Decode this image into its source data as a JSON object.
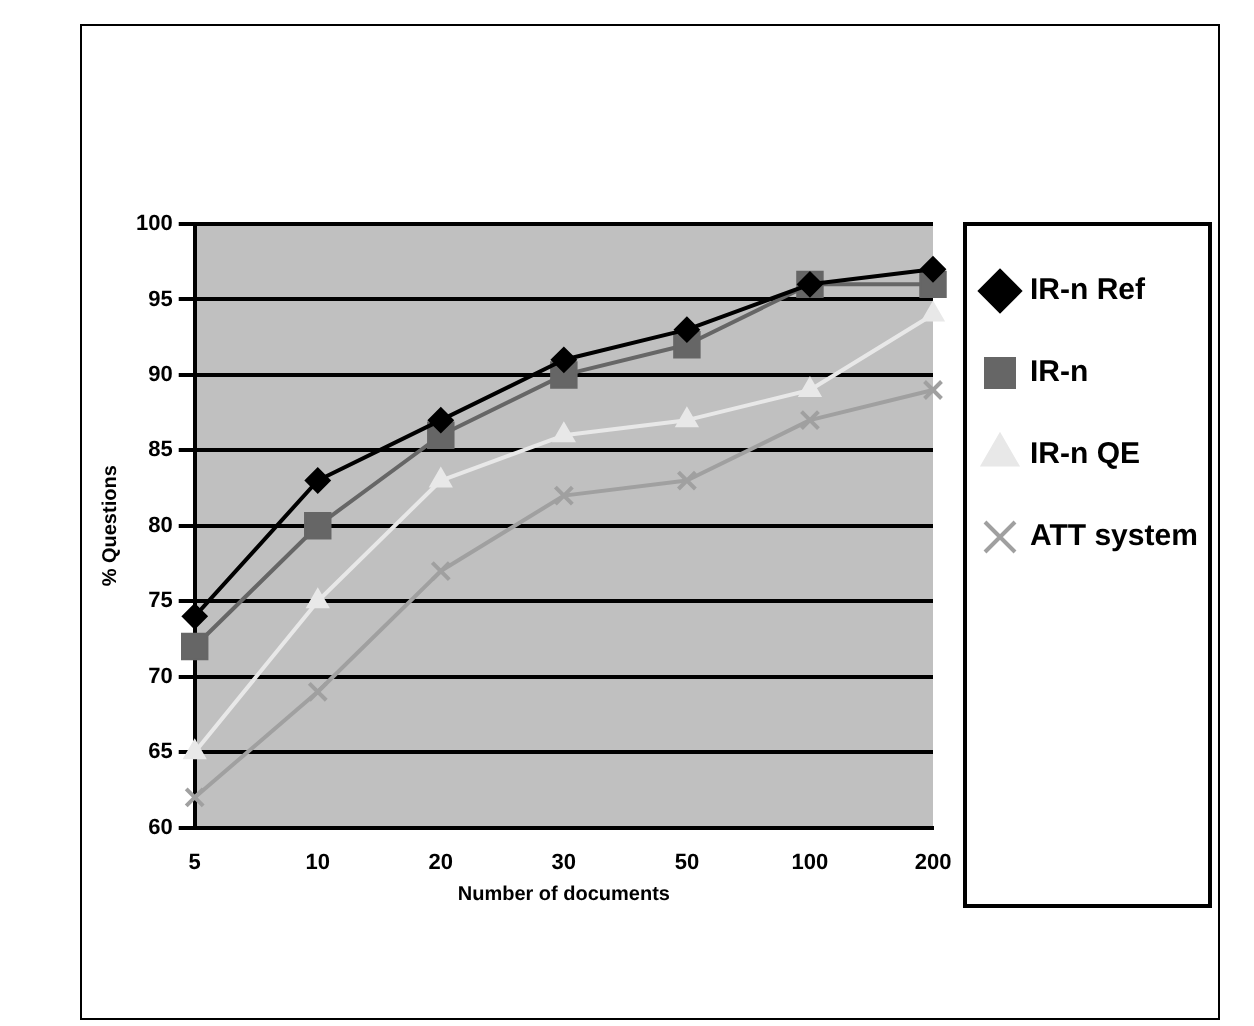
{
  "chart_data": {
    "type": "line",
    "xlabel": "Number of documents",
    "ylabel": "% Questions",
    "categories": [
      "5",
      "10",
      "20",
      "30",
      "50",
      "100",
      "200"
    ],
    "ylim": [
      60,
      100
    ],
    "yticks": [
      60,
      65,
      70,
      75,
      80,
      85,
      90,
      95,
      100
    ],
    "grid": "y",
    "legend": "right",
    "series": [
      {
        "name": "IR-n Ref",
        "color": "#000000",
        "marker": "diamond",
        "values": [
          74,
          83,
          87,
          91,
          93,
          96,
          97
        ]
      },
      {
        "name": "IR-n",
        "color": "#666666",
        "marker": "square",
        "values": [
          72,
          80,
          86,
          90,
          92,
          96,
          96
        ]
      },
      {
        "name": "IR-n QE",
        "color": "#e8e8e8",
        "marker": "triangle",
        "values": [
          65,
          75,
          83,
          86,
          87,
          89,
          94
        ]
      },
      {
        "name": "ATT system",
        "color": "#a0a0a0",
        "marker": "cross",
        "values": [
          62,
          69,
          77,
          82,
          83,
          87,
          89
        ]
      }
    ]
  }
}
